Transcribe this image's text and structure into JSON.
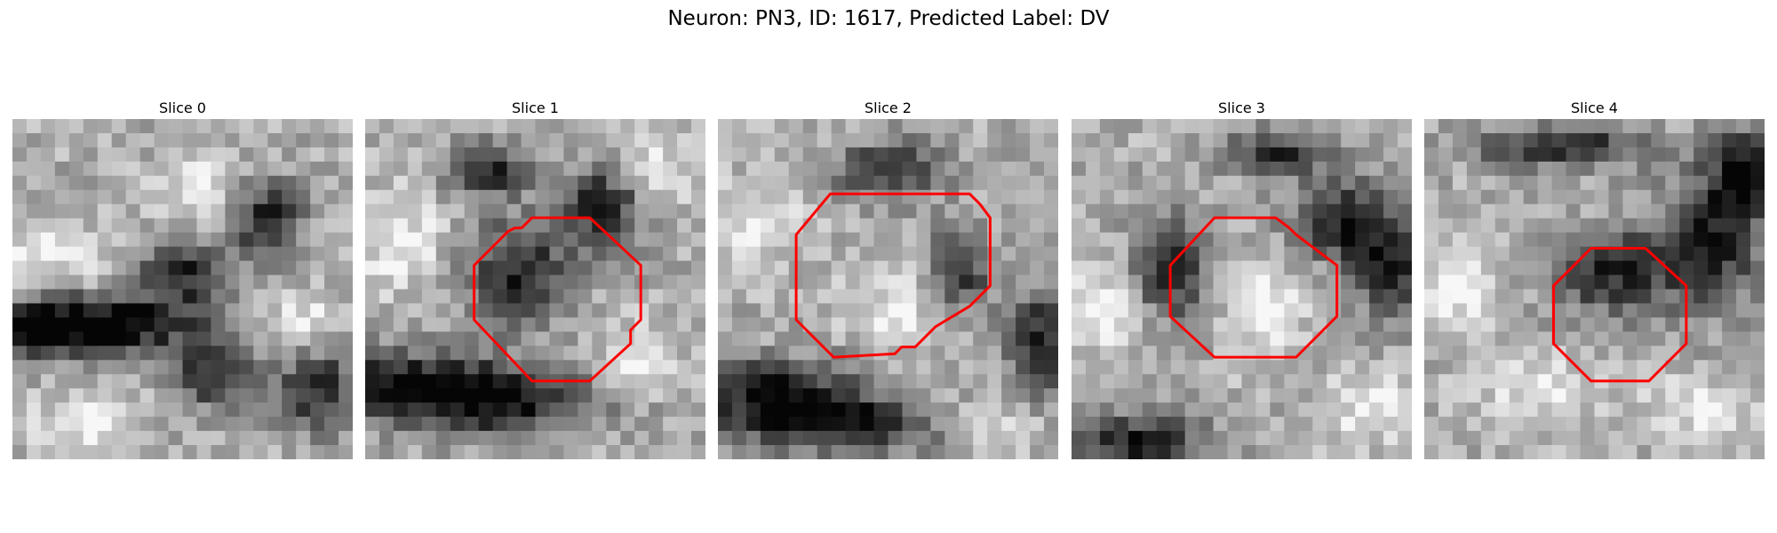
{
  "figure": {
    "title": "Neuron: PN3, ID: 1617, Predicted Label: DV"
  },
  "panels": [
    {
      "title": "Slice 0",
      "has_contour": false
    },
    {
      "title": "Slice 1",
      "has_contour": true
    },
    {
      "title": "Slice 2",
      "has_contour": true
    },
    {
      "title": "Slice 3",
      "has_contour": true
    },
    {
      "title": "Slice 4",
      "has_contour": true
    }
  ],
  "colors": {
    "contour": "#ff0000",
    "colormap": "grayscale"
  }
}
